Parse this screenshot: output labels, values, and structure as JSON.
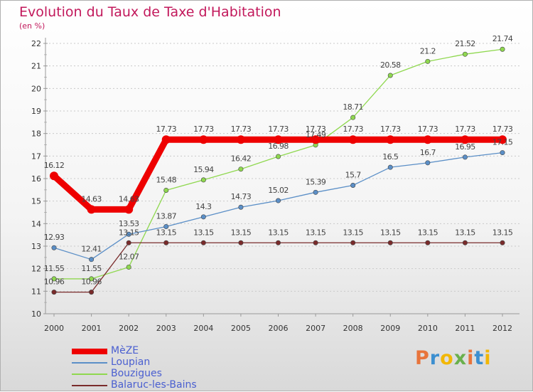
{
  "title": "Evolution du Taux de Taxe d'Habitation",
  "subtitle": "(en %)",
  "logo": {
    "text": "Proxiti",
    "colors": [
      "#e8743b",
      "#3c8fd0",
      "#f2b705",
      "#6ab04c"
    ]
  },
  "chart_data": {
    "type": "line",
    "title": "Evolution du Taux de Taxe d'Habitation",
    "subtitle": "(en %)",
    "xlabel": "",
    "ylabel": "",
    "ylim": [
      10,
      22
    ],
    "y_ticks": [
      10,
      11,
      12,
      13,
      14,
      15,
      16,
      17,
      18,
      19,
      20,
      21,
      22
    ],
    "grid": "horizontal dotted",
    "legend": "bottom-left",
    "categories": [
      "2000",
      "2001",
      "2002",
      "2003",
      "2004",
      "2005",
      "2006",
      "2007",
      "2008",
      "2009",
      "2010",
      "2011",
      "2012"
    ],
    "series": [
      {
        "name": "MèZE",
        "color": "#ee0000",
        "values": [
          16.12,
          14.63,
          14.63,
          17.73,
          17.73,
          17.73,
          17.73,
          17.73,
          17.73,
          17.73,
          17.73,
          17.73,
          17.73
        ],
        "labels": [
          "16.12",
          "14.63",
          "14.63",
          "17.73",
          "17.73",
          "17.73",
          "17.73",
          "17.73",
          "17.73",
          "17.73",
          "17.73",
          "17.73",
          "17.73"
        ]
      },
      {
        "name": "Loupian",
        "color": "#5b8fc7",
        "values": [
          12.93,
          12.41,
          13.53,
          13.87,
          14.3,
          14.73,
          15.02,
          15.39,
          15.7,
          16.5,
          16.7,
          16.95,
          17.15
        ],
        "labels": [
          "12.93",
          "12.41",
          "13.53",
          "13.87",
          "14.3",
          "14.73",
          "15.02",
          "15.39",
          "15.7",
          "16.5",
          "16.7",
          "16.95",
          "17.15"
        ]
      },
      {
        "name": "Bouzigues",
        "color": "#8fd84f",
        "values": [
          11.55,
          11.55,
          12.07,
          15.48,
          15.94,
          16.42,
          16.98,
          17.49,
          18.71,
          20.58,
          21.2,
          21.52,
          21.74
        ],
        "labels": [
          "11.55",
          "11.55",
          "12.07",
          "15.48",
          "15.94",
          "16.42",
          "16.98",
          "17.49",
          "18.71",
          "20.58",
          "21.2",
          "21.52",
          "21.74"
        ]
      },
      {
        "name": "Balaruc-les-Bains",
        "color": "#7a2b2b",
        "values": [
          10.96,
          10.96,
          13.15,
          13.15,
          13.15,
          13.15,
          13.15,
          13.15,
          13.15,
          13.15,
          13.15,
          13.15,
          13.15
        ],
        "labels": [
          "10.96",
          "10.96",
          "13.15",
          "13.15",
          "13.15",
          "13.15",
          "13.15",
          "13.15",
          "13.15",
          "13.15",
          "13.15",
          "13.15",
          "13.15"
        ]
      }
    ]
  }
}
